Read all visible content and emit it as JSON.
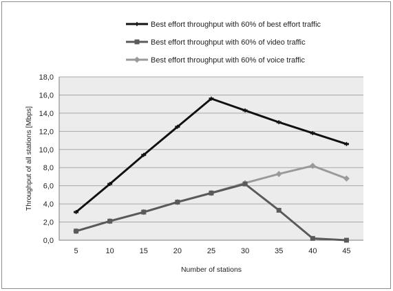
{
  "chart_data": {
    "type": "line",
    "title": "",
    "xlabel": "Number of stations",
    "ylabel": "Throughput of all stations [Mbps]",
    "categories": [
      "5",
      "10",
      "15",
      "20",
      "25",
      "30",
      "35",
      "40",
      "45"
    ],
    "ylim": [
      0,
      18
    ],
    "yticks": [
      "0,0",
      "2,0",
      "4,0",
      "6,0",
      "8,0",
      "10,0",
      "12,0",
      "14,0",
      "16,0",
      "18,0"
    ],
    "grid": true,
    "legend_position": "top",
    "series": [
      {
        "name": "Best effort throughput with 60% of best effort traffic",
        "color": "#111111",
        "marker": "dash",
        "values": [
          3.1,
          6.2,
          9.4,
          12.5,
          15.6,
          14.3,
          13.0,
          11.8,
          10.6
        ]
      },
      {
        "name": "Best effort throughput with 60% of video traffic",
        "color": "#5a5a5a",
        "marker": "square",
        "values": [
          1.0,
          2.1,
          3.1,
          4.2,
          5.2,
          6.2,
          3.3,
          0.2,
          0.0
        ]
      },
      {
        "name": "Best effort throughput with 60% of voice traffic",
        "color": "#9a9a9a",
        "marker": "diamond",
        "values": [
          1.0,
          2.1,
          3.1,
          4.2,
          5.2,
          6.3,
          7.3,
          8.2,
          6.8
        ]
      }
    ]
  }
}
